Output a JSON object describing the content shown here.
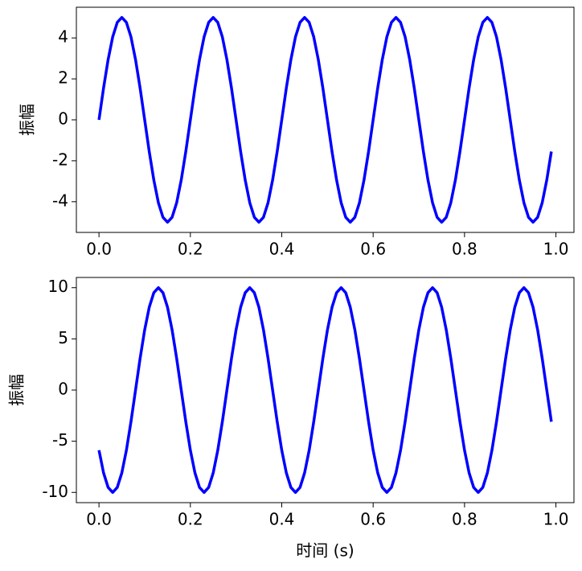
{
  "chart_data": [
    {
      "type": "line",
      "y_label": "振幅",
      "x": [
        0,
        0.01,
        0.02,
        0.03,
        0.04,
        0.05,
        0.06,
        0.07,
        0.08,
        0.09,
        0.1,
        0.11,
        0.12,
        0.13,
        0.14,
        0.15,
        0.16,
        0.17,
        0.18,
        0.19,
        0.2,
        0.21,
        0.22,
        0.23,
        0.24,
        0.25,
        0.26,
        0.27,
        0.28,
        0.29,
        0.3,
        0.31,
        0.32,
        0.33,
        0.34,
        0.35,
        0.36,
        0.37,
        0.38,
        0.39,
        0.4,
        0.41,
        0.42,
        0.43,
        0.44,
        0.45,
        0.46,
        0.47,
        0.48,
        0.49,
        0.5,
        0.51,
        0.52,
        0.53,
        0.54,
        0.55,
        0.56,
        0.57,
        0.58,
        0.59,
        0.6,
        0.61,
        0.62,
        0.63,
        0.64,
        0.65,
        0.66,
        0.67,
        0.68,
        0.69,
        0.7,
        0.71,
        0.72,
        0.73,
        0.74,
        0.75,
        0.76,
        0.77,
        0.78,
        0.79,
        0.8,
        0.81,
        0.82,
        0.83,
        0.84,
        0.85,
        0.86,
        0.87,
        0.88,
        0.89,
        0.9,
        0.91,
        0.92,
        0.93,
        0.94,
        0.95,
        0.96,
        0.97,
        0.98,
        0.99
      ],
      "series": [
        {
          "color": "#0000ff",
          "values": [
            0,
            1.55,
            2.94,
            4.05,
            4.76,
            5,
            4.76,
            4.05,
            2.94,
            1.55,
            0,
            -1.55,
            -2.94,
            -4.05,
            -4.76,
            -5,
            -4.76,
            -4.05,
            -2.94,
            -1.55,
            0,
            1.55,
            2.94,
            4.05,
            4.76,
            5,
            4.76,
            4.05,
            2.94,
            1.55,
            0,
            -1.55,
            -2.94,
            -4.05,
            -4.76,
            -5,
            -4.76,
            -4.05,
            -2.94,
            -1.55,
            0,
            1.55,
            2.94,
            4.05,
            4.76,
            5,
            4.76,
            4.05,
            2.94,
            1.55,
            0,
            -1.55,
            -2.94,
            -4.05,
            -4.76,
            -5,
            -4.76,
            -4.05,
            -2.94,
            -1.55,
            0,
            1.55,
            2.94,
            4.05,
            4.76,
            5,
            4.76,
            4.05,
            2.94,
            1.55,
            0,
            -1.55,
            -2.94,
            -4.05,
            -4.76,
            -5,
            -4.76,
            -4.05,
            -2.94,
            -1.55,
            0,
            1.55,
            2.94,
            4.05,
            4.76,
            5,
            4.76,
            4.05,
            2.94,
            1.55,
            0,
            -1.55,
            -2.94,
            -4.05,
            -4.76,
            -5,
            -4.76,
            -4.05,
            -2.94,
            -1.55
          ]
        }
      ],
      "xlim": [
        -0.0495,
        1.0395
      ],
      "xticks": [
        {
          "value": 0,
          "label": "0.0"
        },
        0.2,
        0.4,
        0.6,
        0.8,
        {
          "value": 1,
          "label": "1.0"
        }
      ],
      "ylim": [
        -5.5,
        5.5
      ],
      "yticks": [
        -4,
        -2,
        0,
        2,
        4
      ]
    },
    {
      "type": "line",
      "x_label": "时间 (s)",
      "y_label": "振幅",
      "x": [
        0,
        0.01,
        0.02,
        0.03,
        0.04,
        0.05,
        0.06,
        0.07,
        0.08,
        0.09,
        0.1,
        0.11,
        0.12,
        0.13,
        0.14,
        0.15,
        0.16,
        0.17,
        0.18,
        0.19,
        0.2,
        0.21,
        0.22,
        0.23,
        0.24,
        0.25,
        0.26,
        0.27,
        0.28,
        0.29,
        0.3,
        0.31,
        0.32,
        0.33,
        0.34,
        0.35,
        0.36,
        0.37,
        0.38,
        0.39,
        0.4,
        0.41,
        0.42,
        0.43,
        0.44,
        0.45,
        0.46,
        0.47,
        0.48,
        0.49,
        0.5,
        0.51,
        0.52,
        0.53,
        0.54,
        0.55,
        0.56,
        0.57,
        0.58,
        0.59,
        0.6,
        0.61,
        0.62,
        0.63,
        0.64,
        0.65,
        0.66,
        0.67,
        0.68,
        0.69,
        0.7,
        0.71,
        0.72,
        0.73,
        0.74,
        0.75,
        0.76,
        0.77,
        0.78,
        0.79,
        0.8,
        0.81,
        0.82,
        0.83,
        0.84,
        0.85,
        0.86,
        0.87,
        0.88,
        0.89,
        0.9,
        0.91,
        0.92,
        0.93,
        0.94,
        0.95,
        0.96,
        0.97,
        0.98,
        0.99
      ],
      "series": [
        {
          "color": "#0000ff",
          "values": [
            -5.88,
            -8.09,
            -9.51,
            -10,
            -9.51,
            -8.09,
            -5.88,
            -3.09,
            0,
            3.09,
            5.88,
            8.09,
            9.51,
            10,
            9.51,
            8.09,
            5.88,
            3.09,
            0,
            -3.09,
            -5.88,
            -8.09,
            -9.51,
            -10,
            -9.51,
            -8.09,
            -5.88,
            -3.09,
            0,
            3.09,
            5.88,
            8.09,
            9.51,
            10,
            9.51,
            8.09,
            5.88,
            3.09,
            0,
            -3.09,
            -5.88,
            -8.09,
            -9.51,
            -10,
            -9.51,
            -8.09,
            -5.88,
            -3.09,
            0,
            3.09,
            5.88,
            8.09,
            9.51,
            10,
            9.51,
            8.09,
            5.88,
            3.09,
            0,
            -3.09,
            -5.88,
            -8.09,
            -9.51,
            -10,
            -9.51,
            -8.09,
            -5.88,
            -3.09,
            0,
            3.09,
            5.88,
            8.09,
            9.51,
            10,
            9.51,
            8.09,
            5.88,
            3.09,
            0,
            -3.09,
            -5.88,
            -8.09,
            -9.51,
            -10,
            -9.51,
            -8.09,
            -5.88,
            -3.09,
            0,
            3.09,
            5.88,
            8.09,
            9.51,
            10,
            9.51,
            8.09,
            5.88,
            3.09,
            0,
            -3.09
          ]
        }
      ],
      "xlim": [
        -0.0495,
        1.0395
      ],
      "xticks": [
        {
          "value": 0,
          "label": "0.0"
        },
        0.2,
        0.4,
        0.6,
        0.8,
        {
          "value": 1,
          "label": "1.0"
        }
      ],
      "ylim": [
        -11,
        11
      ],
      "yticks": [
        -10,
        -5,
        0,
        5,
        10
      ]
    }
  ]
}
